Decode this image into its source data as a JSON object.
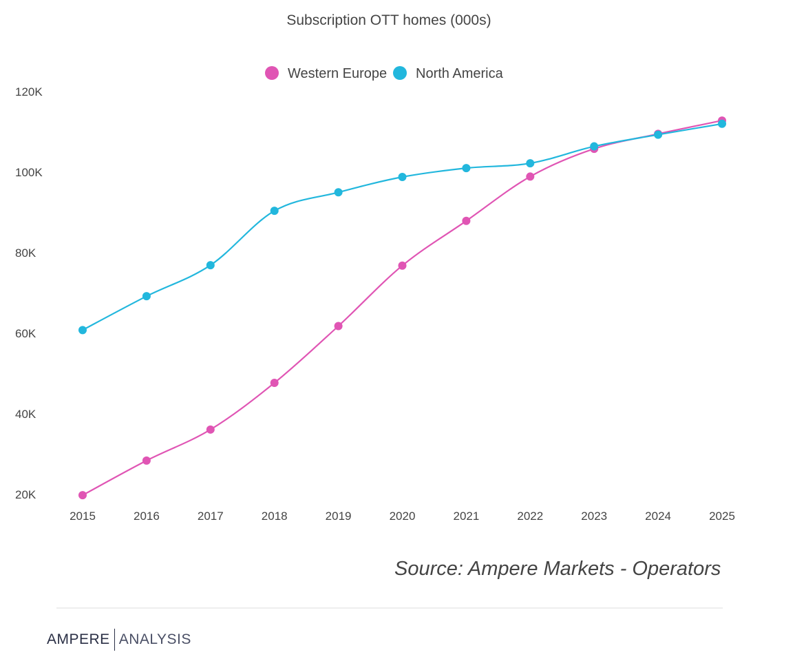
{
  "chart_data": {
    "type": "line",
    "title": "Subscription OTT homes (000s)",
    "categories": [
      "2015",
      "2016",
      "2017",
      "2018",
      "2019",
      "2020",
      "2021",
      "2022",
      "2023",
      "2024",
      "2025"
    ],
    "series": [
      {
        "name": "Western Europe",
        "color": "#e055b4",
        "values": [
          19800,
          28400,
          36100,
          47700,
          61800,
          76800,
          87900,
          98900,
          105800,
          109500,
          112800
        ]
      },
      {
        "name": "North America",
        "color": "#22b7dd",
        "values": [
          60800,
          69200,
          76900,
          90400,
          95000,
          98800,
          101000,
          102200,
          106400,
          109300,
          112000
        ]
      }
    ],
    "ylim": [
      20000,
      120000
    ],
    "yticks": [
      20000,
      40000,
      60000,
      80000,
      100000,
      120000
    ],
    "ytick_labels": [
      "20K",
      "40K",
      "60K",
      "80K",
      "100K",
      "120K"
    ],
    "legend_position": "top-center",
    "grid": false
  },
  "footer": {
    "source": "Source: Ampere Markets - Operators",
    "logo_brand": "AMPERE",
    "logo_sub": "ANALYSIS"
  }
}
